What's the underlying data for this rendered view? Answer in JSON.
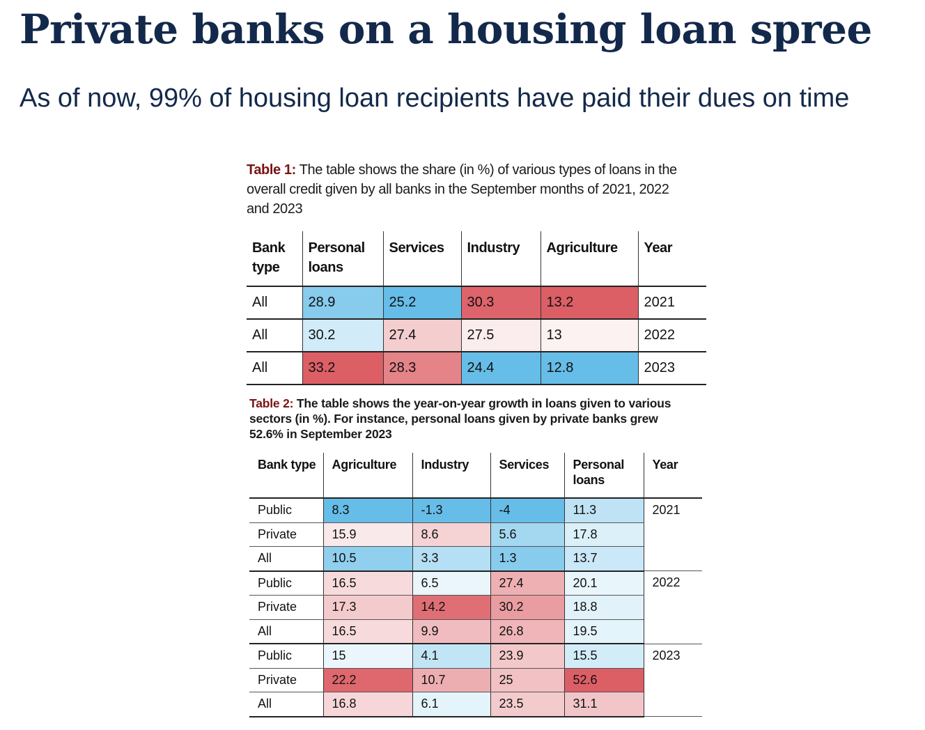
{
  "headline": "Private banks on a housing loan spree",
  "subheadline": "As of now, 99% of housing loan recipients have paid their dues on time",
  "colors": {
    "headline": "#13294b",
    "caption_label": "#7a1313",
    "positive_scale": "#d9535a",
    "negative_scale": "#5ab8e6"
  },
  "chart_data": [
    {
      "type": "table",
      "caption_label": "Table 1:",
      "caption_text": "The table shows the share (in %) of various types of loans in the overall credit given by all banks in the September months of 2021, 2022 and 2023",
      "columns": [
        "Bank type",
        "Personal loans",
        "Services",
        "Industry",
        "Agriculture",
        "Year"
      ],
      "rows": [
        {
          "bank": "All",
          "personal": "28.9",
          "services": "25.2",
          "industry": "30.3",
          "agriculture": "13.2",
          "year": "2021"
        },
        {
          "bank": "All",
          "personal": "30.2",
          "services": "27.4",
          "industry": "27.5",
          "agriculture": "13",
          "year": "2022"
        },
        {
          "bank": "All",
          "personal": "33.2",
          "services": "28.3",
          "industry": "24.4",
          "agriculture": "12.8",
          "year": "2023"
        }
      ]
    },
    {
      "type": "table",
      "caption_label": "Table 2:",
      "caption_text": "The table shows the year-on-year growth in loans given to various sectors (in %). For instance, personal loans given by private banks grew 52.6% in September 2023",
      "columns": [
        "Bank type",
        "Agriculture",
        "Industry",
        "Services",
        "Personal loans",
        "Year"
      ],
      "rows": [
        {
          "bank": "Public",
          "agriculture": "8.3",
          "industry": "-1.3",
          "services": "-4",
          "personal": "11.3",
          "year": "2021"
        },
        {
          "bank": "Private",
          "agriculture": "15.9",
          "industry": "8.6",
          "services": "5.6",
          "personal": "17.8",
          "year": ""
        },
        {
          "bank": "All",
          "agriculture": "10.5",
          "industry": "3.3",
          "services": "1.3",
          "personal": "13.7",
          "year": ""
        },
        {
          "bank": "Public",
          "agriculture": "16.5",
          "industry": "6.5",
          "services": "27.4",
          "personal": "20.1",
          "year": "2022"
        },
        {
          "bank": "Private",
          "agriculture": "17.3",
          "industry": "14.2",
          "services": "30.2",
          "personal": "18.8",
          "year": ""
        },
        {
          "bank": "All",
          "agriculture": "16.5",
          "industry": "9.9",
          "services": "26.8",
          "personal": "19.5",
          "year": ""
        },
        {
          "bank": "Public",
          "agriculture": "15",
          "industry": "4.1",
          "services": "23.9",
          "personal": "15.5",
          "year": "2023"
        },
        {
          "bank": "Private",
          "agriculture": "22.2",
          "industry": "10.7",
          "services": "25",
          "personal": "52.6",
          "year": ""
        },
        {
          "bank": "All",
          "agriculture": "16.8",
          "industry": "6.1",
          "services": "23.5",
          "personal": "31.1",
          "year": ""
        }
      ]
    }
  ]
}
